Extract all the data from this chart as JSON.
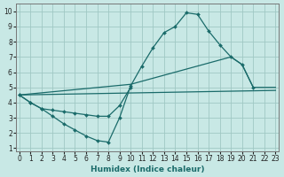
{
  "xlabel": "Humidex (Indice chaleur)",
  "xlim": [
    -0.3,
    23.3
  ],
  "ylim": [
    0.8,
    10.5
  ],
  "xticks": [
    0,
    1,
    2,
    3,
    4,
    5,
    6,
    7,
    8,
    9,
    10,
    11,
    12,
    13,
    14,
    15,
    16,
    17,
    18,
    19,
    20,
    21,
    22,
    23
  ],
  "yticks": [
    1,
    2,
    3,
    4,
    5,
    6,
    7,
    8,
    9,
    10
  ],
  "bg_color": "#c8e8e5",
  "grid_color": "#a0c8c4",
  "line_color": "#1a6b6a",
  "line1_x": [
    0,
    1,
    2,
    3,
    4,
    5,
    6,
    7,
    8,
    9,
    10,
    11,
    12,
    13,
    14,
    15,
    16,
    17,
    18,
    19,
    20,
    21
  ],
  "line1_y": [
    4.5,
    4.0,
    3.6,
    3.1,
    2.6,
    2.2,
    1.8,
    1.5,
    1.4,
    3.0,
    5.1,
    6.4,
    7.6,
    8.6,
    9.0,
    9.9,
    9.8,
    8.7,
    7.8,
    7.0,
    6.5,
    5.0
  ],
  "line2_x": [
    0,
    1,
    2,
    3,
    4,
    5,
    6,
    7,
    8,
    9,
    10
  ],
  "line2_y": [
    4.5,
    4.0,
    3.6,
    3.5,
    3.4,
    3.3,
    3.2,
    3.1,
    3.1,
    3.8,
    5.0
  ],
  "line3_x": [
    0,
    23
  ],
  "line3_y": [
    4.5,
    4.8
  ],
  "line4_x": [
    0,
    10,
    19,
    20,
    21,
    23
  ],
  "line4_y": [
    4.5,
    5.2,
    7.0,
    6.5,
    5.0,
    5.0
  ]
}
